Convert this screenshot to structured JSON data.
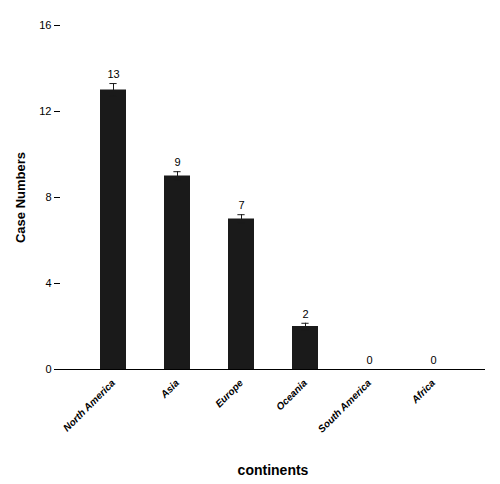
{
  "chart_data": {
    "type": "bar",
    "categories": [
      "North America",
      "Asia",
      "Europe",
      "Oceania",
      "South America",
      "Africa"
    ],
    "values": [
      13,
      9,
      7,
      2,
      0,
      0
    ],
    "errors": [
      0.3,
      0.2,
      0.2,
      0.15,
      0,
      0
    ],
    "color": "#1a1a1a",
    "xlabel": "continents",
    "ylabel": "Case Numbers",
    "ylim": [
      0,
      16
    ],
    "yticks": [
      0,
      4,
      8,
      12,
      16
    ],
    "data_labels": true
  }
}
